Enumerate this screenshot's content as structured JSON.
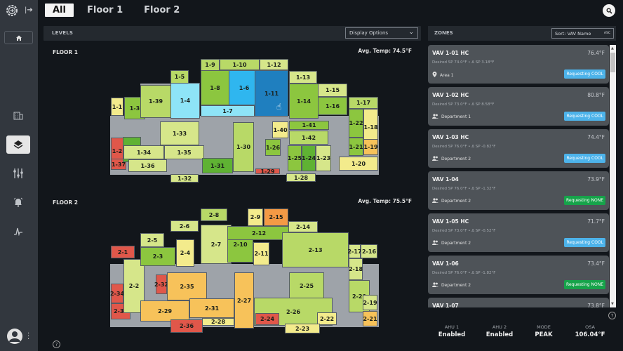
{
  "sidebar": {
    "logo": "gear-arrow-logo",
    "items": [
      {
        "name": "home",
        "icon": "home-icon"
      },
      {
        "name": "buildings",
        "icon": "building-icon"
      },
      {
        "name": "layers",
        "icon": "layers-icon",
        "active": true
      },
      {
        "name": "controls",
        "icon": "sliders-icon"
      },
      {
        "name": "alarms",
        "icon": "alarm-icon"
      },
      {
        "name": "trends",
        "icon": "pulse-icon"
      }
    ]
  },
  "tabs": [
    {
      "label": "All",
      "active": true
    },
    {
      "label": "Floor 1"
    },
    {
      "label": "Floor 2"
    }
  ],
  "levels": {
    "title": "LEVELS",
    "display_options": "Display Options",
    "floors": [
      {
        "label": "FLOOR 1",
        "avg_temp": "Avg. Temp: 74.5°F"
      },
      {
        "label": "FLOOR 2",
        "avg_temp": "Avg. Temp: 75.5°F"
      }
    ]
  },
  "colors": {
    "red": "#e0574a",
    "orange": "#f49a45",
    "amber": "#f7c25a",
    "lightyellow": "#f3eb8c",
    "yellowgreen": "#d6e68a",
    "lightgreen": "#b8d967",
    "green": "#8cc63f",
    "darkgreen": "#5fb233",
    "lightblue": "#8ee4f7",
    "blue": "#2fb6ef",
    "darkblue": "#1f7fbf",
    "corridor": "#9ea3a9",
    "cool_badge": "#4db3ea",
    "none_badge": "#16a34a"
  },
  "zones": {
    "title": "ZONES",
    "sort_label": "Sort: VAV Name",
    "sort_dir": "ASC",
    "items": [
      {
        "name": "VAV 1-01 HC",
        "temp": "76.4°F",
        "sp": "Desired SP  74.0°F  •  Δ SP  3.18°F",
        "area_icon": "location-pin-icon",
        "area": "Area 1",
        "status": "Requesting COOL",
        "status_color": "#4db3ea"
      },
      {
        "name": "VAV 1-02 HC",
        "temp": "80.8°F",
        "sp": "Desired SP  73.0°F  •  Δ SP  8.58°F",
        "area_icon": "people-icon",
        "area": "Department 1",
        "status": "Requesting COOL",
        "status_color": "#4db3ea"
      },
      {
        "name": "VAV 1-03 HC",
        "temp": "74.4°F",
        "sp": "Desired SP  76.0°F  •  Δ SP  -0.82°F",
        "area_icon": "people-icon",
        "area": "Department 2",
        "status": "Requesting COOL",
        "status_color": "#4db3ea"
      },
      {
        "name": "VAV 1-04",
        "temp": "73.9°F",
        "sp": "Desired SP  76.0°F  •  Δ SP  -1.32°F",
        "area_icon": "people-icon",
        "area": "Department 2",
        "status": "Requesting NONE",
        "status_color": "#16a34a"
      },
      {
        "name": "VAV 1-05 HC",
        "temp": "71.7°F",
        "sp": "Desired SP  73.0°F  •  Δ SP  -0.52°F",
        "area_icon": "people-icon",
        "area": "Department 2",
        "status": "Requesting COOL",
        "status_color": "#4db3ea"
      },
      {
        "name": "VAV 1-06",
        "temp": "73.4°F",
        "sp": "Desired SP  76.0°F  •  Δ SP  -1.82°F",
        "area_icon": "people-icon",
        "area": "Department 2",
        "status": "Requesting NONE",
        "status_color": "#16a34a"
      },
      {
        "name": "VAV 1-07",
        "temp": "73.8°F",
        "sp": "",
        "area_icon": "",
        "area": "",
        "status": "",
        "status_color": ""
      }
    ]
  },
  "status_bar": [
    {
      "key": "AHU 1",
      "value": "Enabled"
    },
    {
      "key": "AHU 2",
      "value": "Enabled"
    },
    {
      "key": "MODE",
      "value": "PEAK"
    },
    {
      "key": "OSA",
      "value": "106.04°F"
    }
  ],
  "floor1_rooms": [
    [
      "1-1",
      158,
      139,
      18,
      26,
      "lightyellow"
    ],
    [
      "1-2",
      158,
      196,
      18,
      38,
      "red"
    ],
    [
      "1-37",
      158,
      226,
      22,
      16,
      "red"
    ],
    [
      "1-3",
      177,
      138,
      30,
      32,
      "green"
    ],
    [
      "1-38",
      175,
      195,
      26,
      36,
      "darkgreen"
    ],
    [
      "1-39",
      200,
      121,
      44,
      47,
      "lightgreen"
    ],
    [
      "1-4",
      243,
      118,
      42,
      51,
      "lightblue"
    ],
    [
      "1-5",
      243,
      100,
      26,
      19,
      "lightgreen"
    ],
    [
      "1-8",
      286,
      100,
      41,
      50,
      "green"
    ],
    [
      "1-9",
      286,
      84,
      27,
      17,
      "lightgreen"
    ],
    [
      "1-10",
      313,
      84,
      57,
      16,
      "lightgreen"
    ],
    [
      "1-12",
      370,
      84,
      41,
      16,
      "yellowgreen"
    ],
    [
      "1-6",
      326,
      100,
      44,
      50,
      "blue"
    ],
    [
      "1-7",
      286,
      150,
      77,
      16,
      "lightblue"
    ],
    [
      "1-11",
      363,
      100,
      48,
      66,
      "darkblue"
    ],
    [
      "1-13",
      412,
      101,
      40,
      18,
      "yellowgreen"
    ],
    [
      "1-14",
      412,
      119,
      42,
      50,
      "green"
    ],
    [
      "1-15",
      453,
      119,
      42,
      19,
      "yellowgreen"
    ],
    [
      "1-16",
      453,
      138,
      42,
      26,
      "green"
    ],
    [
      "1-17",
      497,
      138,
      42,
      17,
      "lightgreen"
    ],
    [
      "1-18",
      518,
      155,
      21,
      52,
      "lightyellow"
    ],
    [
      "1-19",
      518,
      198,
      21,
      23,
      "amber"
    ],
    [
      "1-20",
      483,
      223,
      56,
      20,
      "lightyellow"
    ],
    [
      "1-21",
      497,
      196,
      21,
      26,
      "green"
    ],
    [
      "1-22",
      497,
      155,
      21,
      41,
      "green"
    ],
    [
      "1-33",
      228,
      173,
      56,
      34,
      "yellowgreen"
    ],
    [
      "1-34",
      176,
      207,
      58,
      20,
      "yellowgreen"
    ],
    [
      "1-35",
      234,
      207,
      57,
      20,
      "yellowgreen"
    ],
    [
      "1-36",
      183,
      227,
      55,
      18,
      "yellowgreen"
    ],
    [
      "1-31",
      288,
      225,
      44,
      22,
      "darkgreen"
    ],
    [
      "1-30",
      332,
      174,
      30,
      71,
      "lightgreen"
    ],
    [
      "1-26",
      378,
      198,
      22,
      24,
      "green"
    ],
    [
      "1-29",
      364,
      240,
      35,
      8,
      "red"
    ],
    [
      "1-32",
      243,
      248,
      40,
      12,
      "yellowgreen"
    ],
    [
      "1-40",
      388,
      173,
      23,
      24,
      "lightyellow"
    ],
    [
      "1-41",
      412,
      172,
      57,
      13,
      "green"
    ],
    [
      "1-42",
      412,
      186,
      56,
      20,
      "lightgreen"
    ],
    [
      "1-25",
      410,
      207,
      20,
      37,
      "green"
    ],
    [
      "1-24",
      430,
      207,
      20,
      37,
      "darkgreen"
    ],
    [
      "1-23",
      450,
      207,
      22,
      37,
      "yellowgreen"
    ],
    [
      "1-28",
      408,
      247,
      42,
      12,
      "yellowgreen"
    ]
  ],
  "floor2_rooms": [
    [
      "2-1",
      158,
      350,
      34,
      18,
      "red"
    ],
    [
      "2-34",
      158,
      404,
      18,
      28,
      "red"
    ],
    [
      "2-30",
      158,
      432,
      28,
      23,
      "red"
    ],
    [
      "2-2",
      176,
      369,
      30,
      77,
      "yellowgreen"
    ],
    [
      "2-3",
      200,
      352,
      50,
      27,
      "green"
    ],
    [
      "2-5",
      200,
      332,
      34,
      20,
      "yellowgreen"
    ],
    [
      "2-6",
      243,
      314,
      40,
      16,
      "yellowgreen"
    ],
    [
      "2-4",
      251,
      341,
      26,
      39,
      "lightyellow"
    ],
    [
      "2-7",
      286,
      320,
      44,
      56,
      "yellowgreen"
    ],
    [
      "2-8",
      286,
      297,
      38,
      18,
      "lightgreen"
    ],
    [
      "2-9",
      353,
      297,
      22,
      25,
      "lightyellow"
    ],
    [
      "2-15",
      376,
      297,
      35,
      25,
      "orange"
    ],
    [
      "2-10",
      324,
      322,
      37,
      52,
      "green"
    ],
    [
      "2-11",
      361,
      345,
      23,
      33,
      "lightyellow"
    ],
    [
      "2-12",
      324,
      322,
      90,
      20,
      "green"
    ],
    [
      "2-14",
      411,
      315,
      42,
      16,
      "yellowgreen"
    ],
    [
      "2-13",
      402,
      331,
      95,
      50,
      "lightgreen"
    ],
    [
      "2-17",
      497,
      348,
      17,
      20,
      "yellowgreen"
    ],
    [
      "2-16",
      514,
      348,
      24,
      20,
      "yellowgreen"
    ],
    [
      "2-18",
      497,
      368,
      20,
      31,
      "yellowgreen"
    ],
    [
      "2-20",
      497,
      399,
      30,
      46,
      "lightgreen"
    ],
    [
      "2-19",
      517,
      420,
      21,
      22,
      "yellowgreen"
    ],
    [
      "2-21",
      517,
      443,
      21,
      22,
      "amber"
    ],
    [
      "2-32",
      222,
      391,
      16,
      28,
      "red"
    ],
    [
      "2-35",
      238,
      388,
      57,
      40,
      "amber"
    ],
    [
      "2-27",
      334,
      388,
      28,
      80,
      "amber"
    ],
    [
      "2-25",
      412,
      388,
      50,
      38,
      "lightgreen"
    ],
    [
      "2-26",
      362,
      424,
      112,
      40,
      "lightgreen"
    ],
    [
      "2-31",
      270,
      425,
      64,
      28,
      "amber"
    ],
    [
      "2-29",
      200,
      428,
      70,
      30,
      "amber"
    ],
    [
      "2-28",
      288,
      453,
      46,
      11,
      "lightyellow"
    ],
    [
      "2-36",
      243,
      455,
      46,
      19,
      "red"
    ],
    [
      "2-24",
      364,
      446,
      34,
      17,
      "red"
    ],
    [
      "2-22",
      452,
      445,
      28,
      18,
      "lightyellow"
    ],
    [
      "2-23",
      406,
      461,
      50,
      14,
      "lightyellow"
    ]
  ],
  "map_pointer": "hand-cursor-icon"
}
